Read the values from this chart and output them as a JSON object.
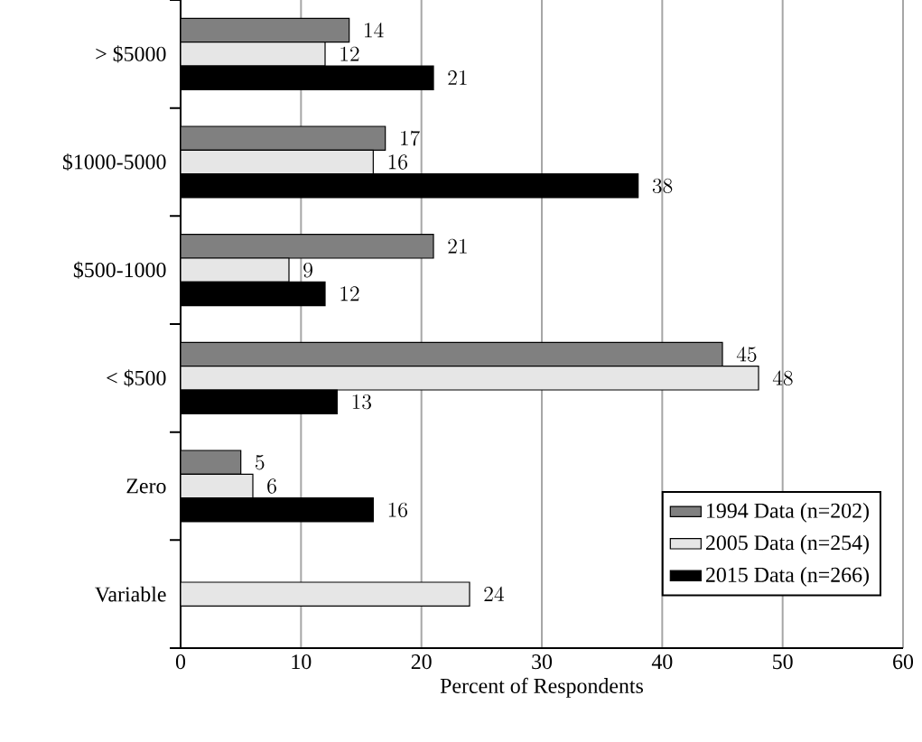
{
  "chart_data": {
    "type": "bar",
    "orientation": "horizontal",
    "xlabel": "Percent of Respondents",
    "categories": [
      "> $5000",
      "$1000-5000",
      "$500-1000",
      "< $500",
      "Zero",
      "Variable"
    ],
    "series": [
      {
        "name": "1994 Data (n=202)",
        "color": "#808080",
        "values": [
          14,
          17,
          21,
          45,
          5,
          null
        ]
      },
      {
        "name": "2005 Data (n=254)",
        "color": "#e6e6e6",
        "values": [
          12,
          16,
          9,
          48,
          6,
          24
        ]
      },
      {
        "name": "2015 Data (n=266)",
        "color": "#000000",
        "values": [
          21,
          38,
          12,
          13,
          16,
          null
        ]
      }
    ],
    "xlim": [
      0,
      60
    ],
    "xticks": [
      0,
      10,
      20,
      30,
      40,
      50,
      60
    ],
    "grid": "x",
    "legend": "bottom right",
    "data_labels": true
  }
}
